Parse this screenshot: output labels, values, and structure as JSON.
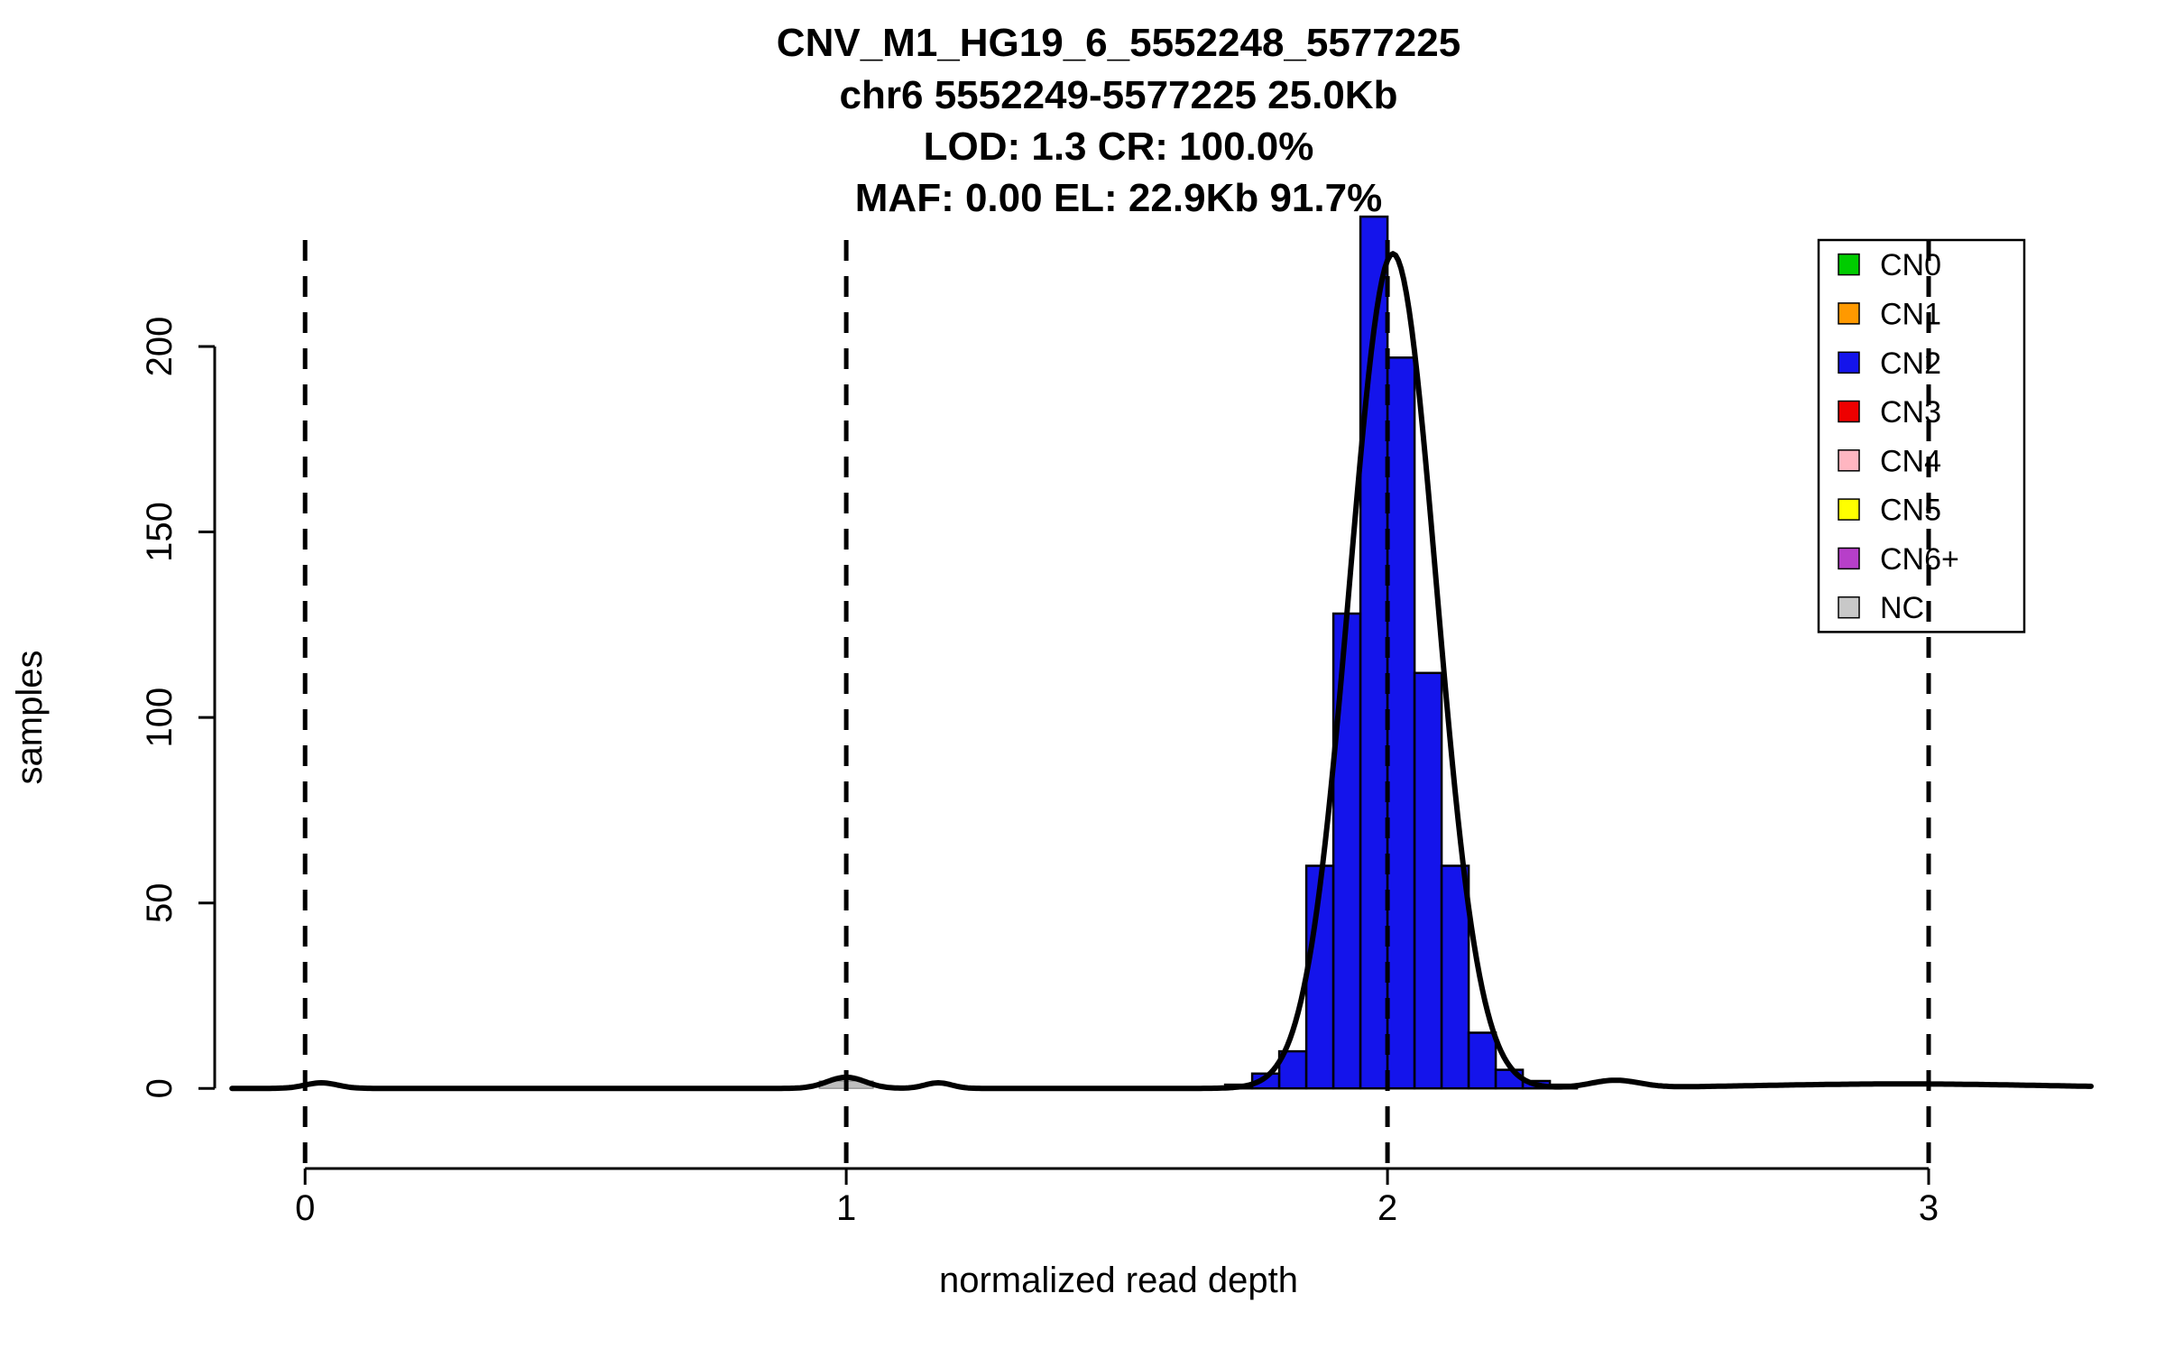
{
  "chart_data": {
    "type": "bar",
    "subtype": "histogram-with-density-fit",
    "title_lines": [
      "CNV_M1_HG19_6_5552248_5577225",
      "chr6 5552249-5577225 25.0Kb",
      "LOD: 1.3 CR: 100.0%",
      "MAF: 0.00 EL: 22.9Kb 91.7%"
    ],
    "xlabel": "normalized read depth",
    "ylabel": "samples",
    "x_ticks": [
      0,
      1,
      2,
      3
    ],
    "y_ticks": [
      0,
      50,
      100,
      150,
      200
    ],
    "xlim": [
      -0.167,
      3.27
    ],
    "ylim": [
      -21.6,
      236
    ],
    "grid": false,
    "background_color": "#ffffff",
    "vlines": {
      "x": [
        0,
        1,
        2,
        3
      ],
      "style": "dashed",
      "color": "#000000"
    },
    "histogram": {
      "series_label": "CN2",
      "bar_color": "#1414EB",
      "bar_edge_color": "#000000",
      "bin_start": 1.7,
      "bin_width": 0.05,
      "counts": [
        1,
        4,
        10,
        60,
        128,
        235,
        197,
        112,
        60,
        15,
        5,
        2,
        1
      ]
    },
    "nc_bars": {
      "color": "#BEBEBE",
      "edge_color": "#777777",
      "bars": [
        {
          "x0": 0.95,
          "x1": 1.0,
          "count": 2
        },
        {
          "x0": 1.0,
          "x1": 1.05,
          "count": 2
        }
      ]
    },
    "density_components": [
      {
        "a": 225,
        "mu": 2.01,
        "sigma": 0.08
      },
      {
        "a": 1.5,
        "mu": 0.03,
        "sigma": 0.03
      },
      {
        "a": 3.0,
        "mu": 1.0,
        "sigma": 0.035
      },
      {
        "a": 1.5,
        "mu": 1.17,
        "sigma": 0.025
      },
      {
        "a": 2.0,
        "mu": 2.42,
        "sigma": 0.045
      },
      {
        "a": 1.2,
        "mu": 2.95,
        "sigma": 0.28
      }
    ],
    "curve_color": "#000000",
    "legend": {
      "position": "top-right",
      "entries": [
        {
          "label": "CN0",
          "color": "#00CC00"
        },
        {
          "label": "CN1",
          "color": "#FF9900"
        },
        {
          "label": "CN2",
          "color": "#1414EB"
        },
        {
          "label": "CN3",
          "color": "#EE0000"
        },
        {
          "label": "CN4",
          "color": "#FFB6C1"
        },
        {
          "label": "CN5",
          "color": "#FFFF00"
        },
        {
          "label": "CN6+",
          "color": "#B73FC9"
        },
        {
          "label": "NC",
          "color": "#C8C8C8"
        }
      ]
    }
  }
}
